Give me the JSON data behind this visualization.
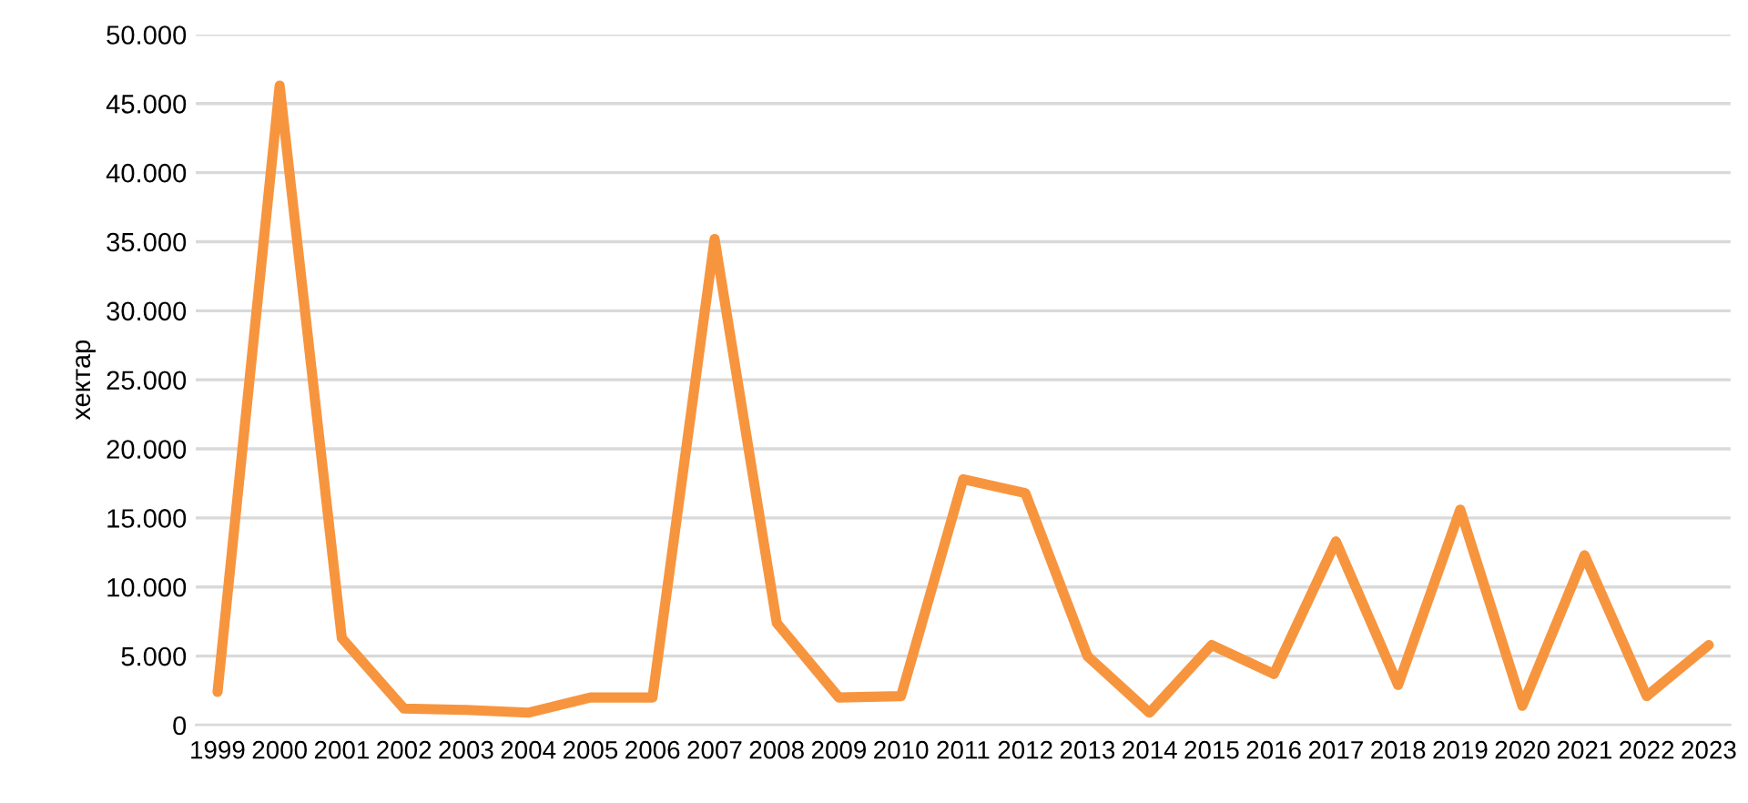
{
  "chart_data": {
    "type": "line",
    "ylabel": "хектар",
    "categories": [
      "1999",
      "2000",
      "2001",
      "2002",
      "2003",
      "2004",
      "2005",
      "2006",
      "2007",
      "2008",
      "2009",
      "2010",
      "2011",
      "2012",
      "2013",
      "2014",
      "2015",
      "2016",
      "2017",
      "2018",
      "2019",
      "2020",
      "2021",
      "2022",
      "2023"
    ],
    "series": [
      {
        "color": "#f7953f",
        "values": [
          2400,
          46300,
          6300,
          1200,
          1100,
          900,
          2000,
          2000,
          35200,
          7400,
          2000,
          2100,
          17800,
          16800,
          5000,
          900,
          5800,
          3700,
          13300,
          2900,
          15600,
          1400,
          12300,
          2100,
          5800
        ]
      }
    ],
    "ylim": [
      0,
      50000
    ],
    "yticks": [
      {
        "value": 0,
        "label": "0"
      },
      {
        "value": 5000,
        "label": "5.000"
      },
      {
        "value": 10000,
        "label": "10.000"
      },
      {
        "value": 15000,
        "label": "15.000"
      },
      {
        "value": 20000,
        "label": "20.000"
      },
      {
        "value": 25000,
        "label": "25.000"
      },
      {
        "value": 30000,
        "label": "30.000"
      },
      {
        "value": 35000,
        "label": "35.000"
      },
      {
        "value": 40000,
        "label": "40.000"
      },
      {
        "value": 45000,
        "label": "45.000"
      },
      {
        "value": 50000,
        "label": "50.000"
      }
    ],
    "grid": "y",
    "marker": "none",
    "line_style": "solid"
  }
}
